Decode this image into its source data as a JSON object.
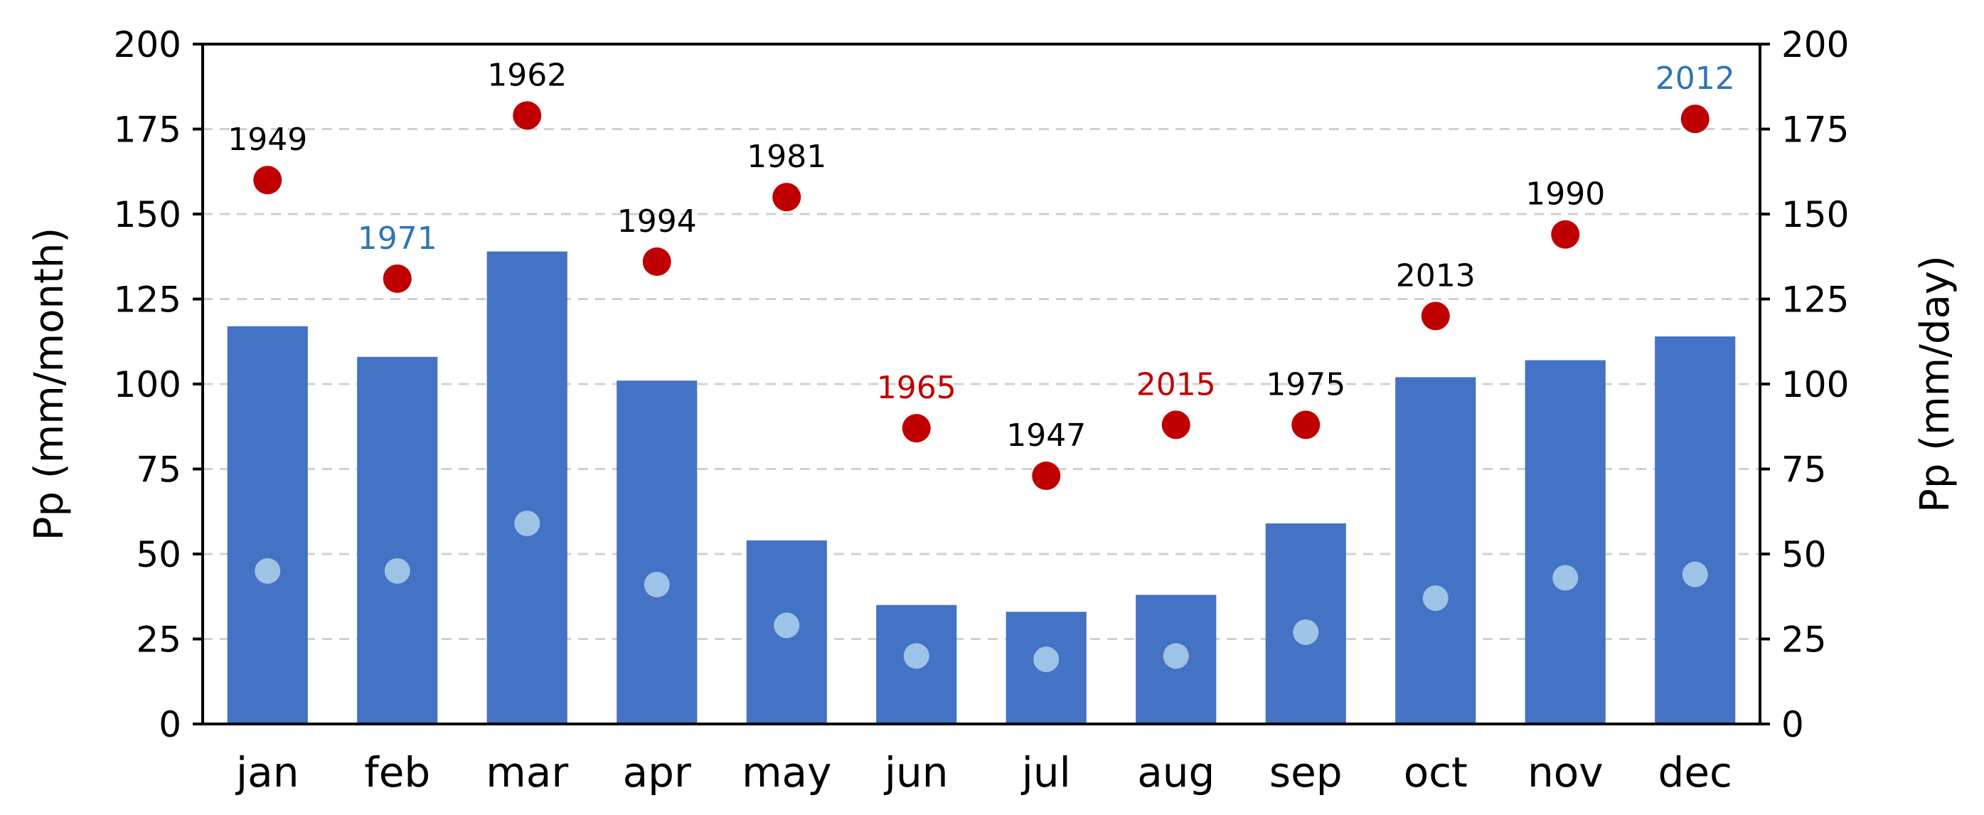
{
  "chart_data": {
    "type": "bar",
    "categories": [
      "jan",
      "feb",
      "mar",
      "apr",
      "may",
      "jun",
      "jul",
      "aug",
      "sep",
      "oct",
      "nov",
      "dec"
    ],
    "ylabel": "Pp (mm/month)",
    "ylabel_right": "Pp (mm/day)",
    "ylim": [
      0,
      200
    ],
    "ylim_right": [
      0,
      200
    ],
    "yticks": [
      "0",
      "25",
      "50",
      "75",
      "100",
      "125",
      "150",
      "175",
      "200"
    ],
    "grid": "horizontal dashed",
    "series": [
      {
        "type": "bar",
        "axis": "left",
        "color": "#4472c4",
        "values": [
          117,
          108,
          139,
          101,
          54,
          35,
          33,
          38,
          59,
          102,
          107,
          114
        ]
      },
      {
        "type": "scatter",
        "axis": "right",
        "color": "#9dc3e6",
        "values": [
          45,
          45,
          59,
          41,
          29,
          20,
          19,
          20,
          27,
          37,
          43,
          44
        ]
      },
      {
        "type": "scatter",
        "axis": "right",
        "color": "#c00000",
        "values": [
          160,
          131,
          179,
          136,
          155,
          87,
          73,
          88,
          88,
          120,
          144,
          178
        ],
        "labels": [
          "1949",
          "1971",
          "1962",
          "1994",
          "1981",
          "1965",
          "1947",
          "2015",
          "1975",
          "2013",
          "1990",
          "2012"
        ],
        "label_colors": [
          "#000000",
          "#2e75b6",
          "#000000",
          "#000000",
          "#000000",
          "#c00000",
          "#000000",
          "#c00000",
          "#000000",
          "#000000",
          "#000000",
          "#2e75b6"
        ]
      }
    ]
  }
}
